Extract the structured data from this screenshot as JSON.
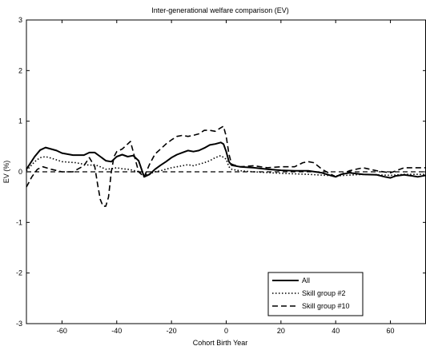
{
  "chart_data": {
    "type": "line",
    "title": "Inter-generational welfare comparison (EV)",
    "xlabel": "Cohort Birth Year",
    "ylabel": "EV (%)",
    "xlim": [
      -73,
      73
    ],
    "ylim": [
      -3,
      3
    ],
    "xticks": [
      -60,
      -40,
      -20,
      0,
      20,
      40,
      60
    ],
    "yticks": [
      -3,
      -2,
      -1,
      0,
      1,
      2,
      3
    ],
    "grid": false,
    "legend": "bottom-right",
    "reference_line": {
      "y": 0,
      "style": "dashed"
    },
    "series": [
      {
        "name": "All",
        "style": "solid",
        "x": [
          -73,
          -70,
          -68,
          -66,
          -64,
          -62,
          -60,
          -56,
          -52,
          -50,
          -48,
          -46,
          -44,
          -42,
          -40,
          -38,
          -36,
          -34,
          -32,
          -30,
          -28,
          -26,
          -24,
          -22,
          -20,
          -18,
          -16,
          -14,
          -12,
          -10,
          -8,
          -6,
          -4,
          -2,
          -1,
          0,
          1,
          2,
          5,
          10,
          15,
          20,
          25,
          30,
          35,
          38,
          40,
          42,
          45,
          50,
          55,
          58,
          60,
          62,
          65,
          68,
          70,
          73
        ],
        "y": [
          0.05,
          0.3,
          0.43,
          0.48,
          0.45,
          0.42,
          0.37,
          0.33,
          0.33,
          0.38,
          0.38,
          0.3,
          0.22,
          0.2,
          0.3,
          0.34,
          0.3,
          0.32,
          0.22,
          -0.1,
          -0.05,
          0.05,
          0.13,
          0.2,
          0.28,
          0.34,
          0.38,
          0.42,
          0.4,
          0.42,
          0.47,
          0.53,
          0.55,
          0.58,
          0.55,
          0.4,
          0.2,
          0.13,
          0.1,
          0.08,
          0.05,
          0.03,
          0.02,
          0.02,
          -0.02,
          -0.07,
          -0.1,
          -0.05,
          -0.02,
          -0.05,
          -0.06,
          -0.1,
          -0.12,
          -0.08,
          -0.06,
          -0.08,
          -0.1,
          -0.07
        ]
      },
      {
        "name": "Skill group #2",
        "style": "dotted",
        "x": [
          -73,
          -70,
          -68,
          -66,
          -64,
          -60,
          -55,
          -50,
          -48,
          -46,
          -44,
          -42,
          -40,
          -38,
          -36,
          -34,
          -32,
          -30,
          -28,
          -26,
          -24,
          -22,
          -20,
          -18,
          -16,
          -14,
          -12,
          -10,
          -8,
          -6,
          -4,
          -2,
          0,
          1,
          2,
          5,
          10,
          20,
          30,
          40,
          50,
          60,
          65,
          70,
          73
        ],
        "y": [
          0.02,
          0.2,
          0.28,
          0.3,
          0.27,
          0.2,
          0.18,
          0.13,
          0.14,
          0.1,
          0.05,
          0.06,
          0.08,
          0.06,
          0.05,
          0.03,
          0.0,
          -0.06,
          -0.04,
          0.0,
          0.02,
          0.05,
          0.08,
          0.1,
          0.12,
          0.14,
          0.12,
          0.15,
          0.18,
          0.22,
          0.28,
          0.32,
          0.25,
          0.1,
          0.05,
          0.02,
          0.0,
          -0.03,
          -0.05,
          -0.08,
          -0.05,
          -0.07,
          -0.05,
          -0.05,
          -0.05
        ]
      },
      {
        "name": "Skill group #10",
        "style": "dashed",
        "x": [
          -73,
          -71,
          -69,
          -67,
          -64,
          -60,
          -56,
          -52,
          -50,
          -48,
          -47,
          -46,
          -45,
          -44,
          -43,
          -42,
          -41,
          -40,
          -38,
          -36,
          -35,
          -34,
          -32,
          -30,
          -28,
          -26,
          -24,
          -22,
          -20,
          -18,
          -16,
          -14,
          -12,
          -10,
          -8,
          -6,
          -4,
          -2,
          -1,
          0,
          1,
          2,
          5,
          10,
          15,
          20,
          25,
          28,
          30,
          32,
          35,
          40,
          45,
          50,
          55,
          60,
          65,
          70,
          73
        ],
        "y": [
          -0.3,
          -0.1,
          0.05,
          0.1,
          0.05,
          0.0,
          0.0,
          0.12,
          0.28,
          0.1,
          -0.25,
          -0.55,
          -0.68,
          -0.68,
          -0.5,
          0.0,
          0.3,
          0.4,
          0.45,
          0.55,
          0.6,
          0.4,
          0.0,
          -0.1,
          0.15,
          0.35,
          0.45,
          0.55,
          0.63,
          0.7,
          0.72,
          0.7,
          0.72,
          0.75,
          0.82,
          0.82,
          0.8,
          0.87,
          0.9,
          0.7,
          0.35,
          0.15,
          0.1,
          0.12,
          0.08,
          0.1,
          0.1,
          0.18,
          0.2,
          0.18,
          0.05,
          -0.1,
          0.02,
          0.08,
          0.02,
          -0.02,
          0.08,
          0.08,
          0.08
        ]
      }
    ]
  }
}
